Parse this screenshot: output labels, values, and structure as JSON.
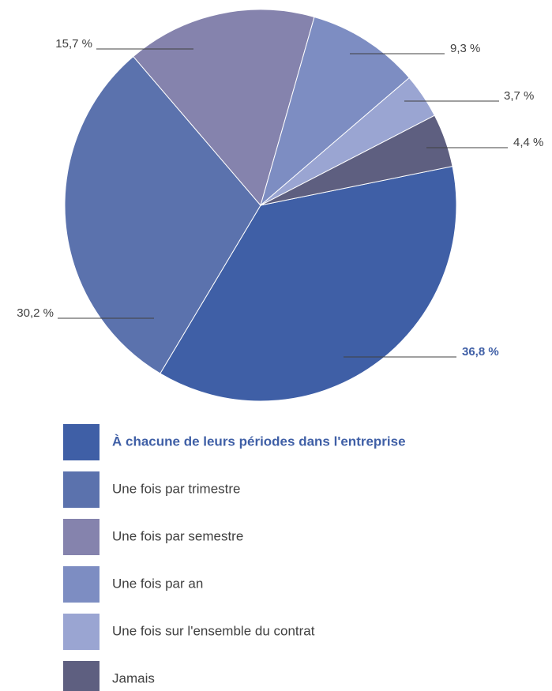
{
  "chart_data": {
    "type": "pie",
    "categories": [
      "À chacune de leurs périodes dans l'entreprise",
      "Une fois par trimestre",
      "Une fois par semestre",
      "Une fois par an",
      "Une fois sur l'ensemble du contrat",
      "Jamais"
    ],
    "values": [
      36.8,
      30.2,
      15.7,
      9.3,
      3.7,
      4.4
    ],
    "value_labels": [
      "36,8 %",
      "30,2 %",
      "15,7 %",
      "9,3 %",
      "3,7 %",
      "4,4 %"
    ],
    "colors": [
      "#3f5fa6",
      "#5b72ad",
      "#8583ad",
      "#7d8dc2",
      "#9aa5d2",
      "#5e5f80"
    ],
    "legend": "bottom"
  }
}
